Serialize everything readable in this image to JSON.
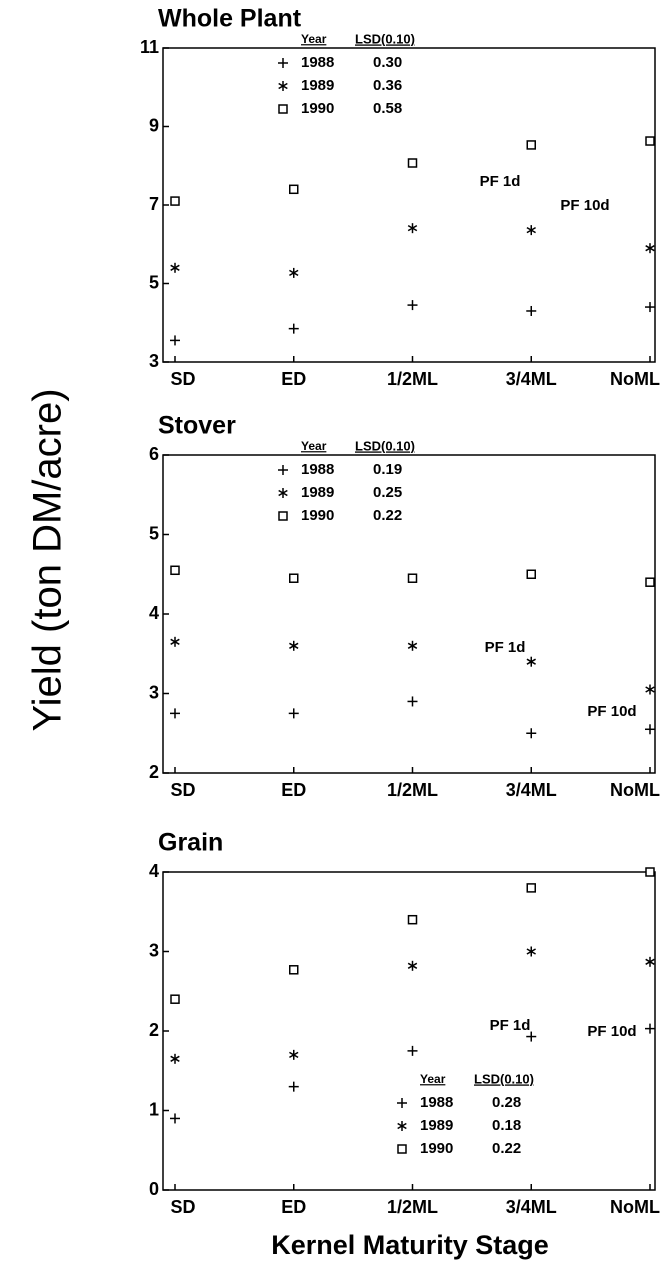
{
  "y_axis_label": "Yield (ton DM/acre)",
  "x_axis_label": "Kernel Maturity Stage",
  "chart_data": [
    {
      "type": "line",
      "title": "Whole Plant",
      "categories": [
        "SD",
        "ED",
        "1/2ML",
        "3/4ML",
        "NoML"
      ],
      "ylim": [
        3,
        11
      ],
      "yticks": [
        3,
        5,
        7,
        9,
        11
      ],
      "legend_loc": "upper left",
      "legend_headers": [
        "Year",
        "LSD(0.10)"
      ],
      "series": [
        {
          "name": "1988",
          "marker": "+",
          "lsd": "0.30",
          "color": "#000000",
          "values": [
            3.55,
            3.85,
            4.45,
            4.3,
            4.4
          ]
        },
        {
          "name": "1989",
          "marker": "*",
          "lsd": "0.36",
          "color": "#000000",
          "values": [
            5.4,
            5.27,
            6.41,
            6.36,
            5.9
          ]
        },
        {
          "name": "1990",
          "marker": "square",
          "lsd": "0.58",
          "color": "#000000",
          "values": [
            7.1,
            7.4,
            8.07,
            8.53,
            8.63
          ]
        }
      ],
      "annotations": [
        "PF 1d",
        "PF 10d"
      ]
    },
    {
      "type": "line",
      "title": "Stover",
      "categories": [
        "SD",
        "ED",
        "1/2ML",
        "3/4ML",
        "NoML"
      ],
      "ylim": [
        2,
        6
      ],
      "yticks": [
        2,
        3,
        4,
        5,
        6
      ],
      "legend_loc": "upper left",
      "legend_headers": [
        "Year",
        "LSD(0.10)"
      ],
      "series": [
        {
          "name": "1988",
          "marker": "+",
          "lsd": "0.19",
          "color": "#000000",
          "values": [
            2.75,
            2.75,
            2.9,
            2.5,
            2.55
          ]
        },
        {
          "name": "1989",
          "marker": "*",
          "lsd": "0.25",
          "color": "#000000",
          "values": [
            3.65,
            3.6,
            3.6,
            3.4,
            3.05
          ]
        },
        {
          "name": "1990",
          "marker": "square",
          "lsd": "0.22",
          "color": "#000000",
          "values": [
            4.55,
            4.45,
            4.45,
            4.5,
            4.4
          ]
        }
      ],
      "annotations": [
        "PF 1d",
        "PF 10d"
      ]
    },
    {
      "type": "line",
      "title": "Grain",
      "categories": [
        "SD",
        "ED",
        "1/2ML",
        "3/4ML",
        "NoML"
      ],
      "ylim": [
        0,
        4
      ],
      "yticks": [
        0,
        1,
        2,
        3,
        4
      ],
      "legend_loc": "lower right",
      "legend_headers": [
        "Year",
        "LSD(0.10)"
      ],
      "series": [
        {
          "name": "1988",
          "marker": "+",
          "lsd": "0.28",
          "color": "#000000",
          "values": [
            0.9,
            1.3,
            1.75,
            1.93,
            2.03
          ]
        },
        {
          "name": "1989",
          "marker": "*",
          "lsd": "0.18",
          "color": "#000000",
          "values": [
            1.65,
            1.7,
            2.82,
            3.0,
            2.87
          ]
        },
        {
          "name": "1990",
          "marker": "square",
          "lsd": "0.22",
          "color": "#000000",
          "values": [
            2.4,
            2.77,
            3.4,
            3.8,
            4.0
          ]
        }
      ],
      "annotations": [
        "PF 1d",
        "PF 10d"
      ]
    }
  ]
}
